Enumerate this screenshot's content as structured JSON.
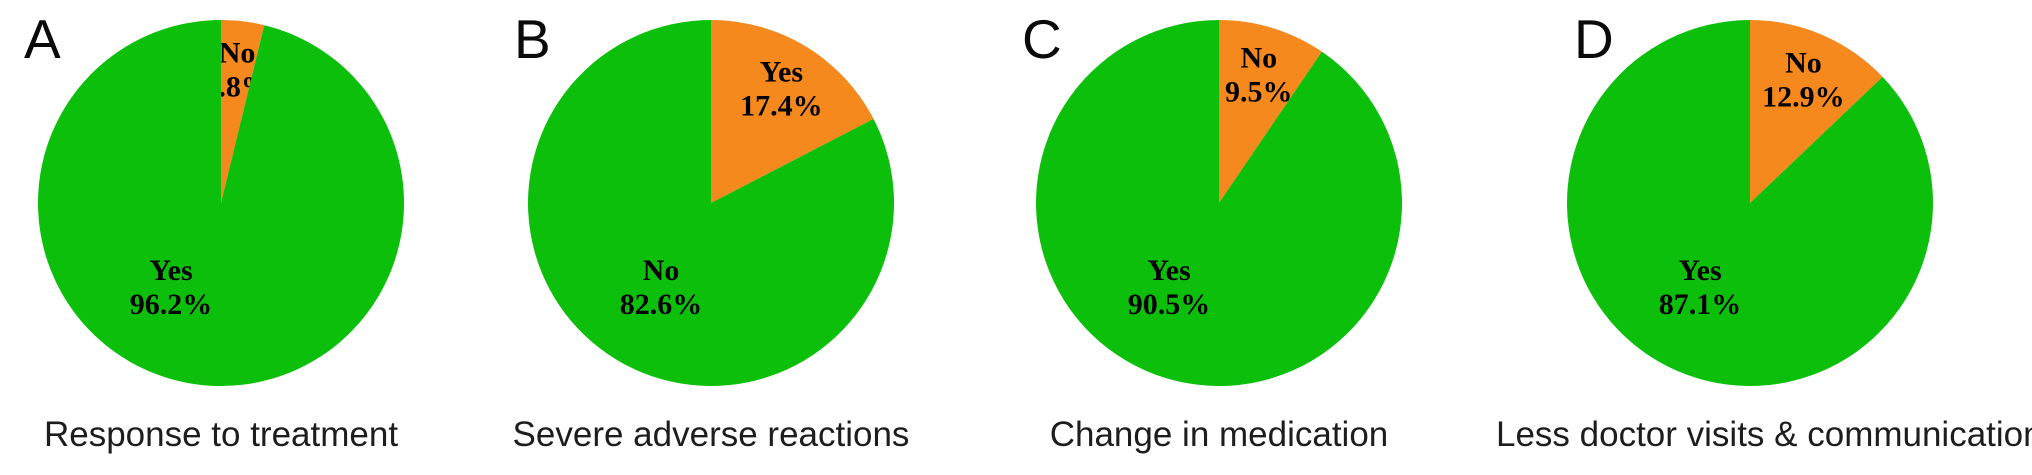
{
  "colors": {
    "green": "#0bbf0b",
    "orange": "#f6891d",
    "slice_label_text": "#000000",
    "caption_text": "#1d1d1d"
  },
  "chart_data": [
    {
      "type": "pie",
      "panel": "A",
      "title": "Response to treatment",
      "start_angle": "12-oclock",
      "direction": "clockwise",
      "legend": "none",
      "slices": [
        {
          "label": "No",
          "value": 3.8,
          "display": "3.8%",
          "color": "orange"
        },
        {
          "label": "Yes",
          "value": 96.2,
          "display": "96.2%",
          "color": "green"
        }
      ]
    },
    {
      "type": "pie",
      "panel": "B",
      "title": "Severe adverse reactions",
      "start_angle": "12-oclock",
      "direction": "clockwise",
      "legend": "none",
      "slices": [
        {
          "label": "Yes",
          "value": 17.4,
          "display": "17.4%",
          "color": "orange"
        },
        {
          "label": "No",
          "value": 82.6,
          "display": "82.6%",
          "color": "green"
        }
      ]
    },
    {
      "type": "pie",
      "panel": "C",
      "title": "Change in medication",
      "start_angle": "12-oclock",
      "direction": "clockwise",
      "legend": "none",
      "slices": [
        {
          "label": "No",
          "value": 9.5,
          "display": "9.5%",
          "color": "orange"
        },
        {
          "label": "Yes",
          "value": 90.5,
          "display": "90.5%",
          "color": "green"
        }
      ]
    },
    {
      "type": "pie",
      "panel": "D",
      "title": "Less doctor visits & communications",
      "start_angle": "12-oclock",
      "direction": "clockwise",
      "legend": "none",
      "slices": [
        {
          "label": "No",
          "value": 12.9,
          "display": "12.9%",
          "color": "orange"
        },
        {
          "label": "Yes",
          "value": 87.1,
          "display": "87.1%",
          "color": "green"
        }
      ]
    }
  ]
}
